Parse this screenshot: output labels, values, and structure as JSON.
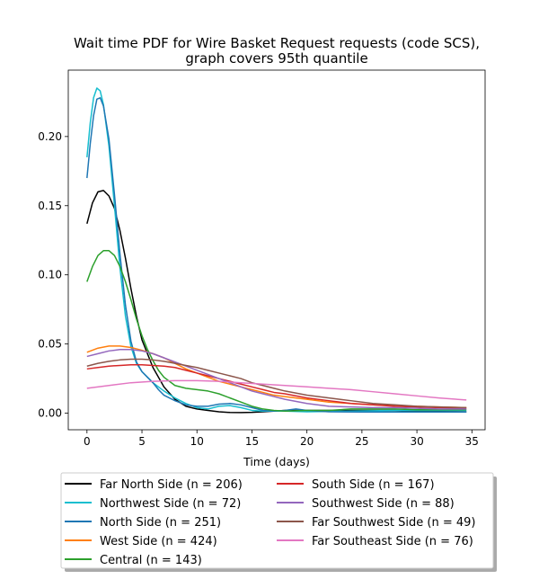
{
  "chart_data": {
    "type": "line",
    "title_line1": "Wait time PDF for Wire Basket Request  requests (code SCS),",
    "title_line2": "graph covers 95th quantile",
    "xlabel": "Time (days)",
    "ylabel": "",
    "xlim": [
      -1.7,
      36.2
    ],
    "ylim": [
      -0.012,
      0.248
    ],
    "x_ticks": [
      0,
      5,
      10,
      15,
      20,
      25,
      30,
      35
    ],
    "y_ticks": [
      0.0,
      0.05,
      0.1,
      0.15,
      0.2
    ],
    "x_tick_labels": [
      "0",
      "5",
      "10",
      "15",
      "20",
      "25",
      "30",
      "35"
    ],
    "y_tick_labels": [
      "0.00",
      "0.05",
      "0.10",
      "0.15",
      "0.20"
    ],
    "grid": false,
    "legend_position": "below",
    "series": [
      {
        "name": "Far North Side (n = 206)",
        "color": "#000000",
        "points": [
          [
            0,
            0.137
          ],
          [
            0.5,
            0.152
          ],
          [
            1,
            0.16
          ],
          [
            1.5,
            0.161
          ],
          [
            2,
            0.157
          ],
          [
            2.5,
            0.148
          ],
          [
            3,
            0.132
          ],
          [
            3.5,
            0.112
          ],
          [
            4,
            0.09
          ],
          [
            4.5,
            0.07
          ],
          [
            5,
            0.053
          ],
          [
            6,
            0.033
          ],
          [
            7,
            0.019
          ],
          [
            8,
            0.01
          ],
          [
            9,
            0.005
          ],
          [
            10,
            0.003
          ],
          [
            11,
            0.002
          ],
          [
            12,
            0.001
          ],
          [
            13,
            0.0005
          ],
          [
            14,
            0.0004
          ],
          [
            15,
            0.0006
          ],
          [
            16,
            0.001
          ],
          [
            18,
            0.002
          ],
          [
            20,
            0.002
          ],
          [
            22,
            0.002
          ],
          [
            24,
            0.002
          ],
          [
            26,
            0.002
          ],
          [
            28,
            0.002
          ],
          [
            30,
            0.0015
          ],
          [
            32,
            0.0012
          ],
          [
            34.5,
            0.001
          ]
        ]
      },
      {
        "name": "Northwest Side (n = 72)",
        "color": "#17becf",
        "points": [
          [
            0,
            0.185
          ],
          [
            0.3,
            0.21
          ],
          [
            0.6,
            0.228
          ],
          [
            0.9,
            0.235
          ],
          [
            1.2,
            0.233
          ],
          [
            1.5,
            0.223
          ],
          [
            2,
            0.193
          ],
          [
            2.5,
            0.15
          ],
          [
            3,
            0.105
          ],
          [
            3.5,
            0.07
          ],
          [
            4,
            0.048
          ],
          [
            4.5,
            0.036
          ],
          [
            5,
            0.03
          ],
          [
            5.5,
            0.026
          ],
          [
            6,
            0.022
          ],
          [
            7,
            0.016
          ],
          [
            8,
            0.011
          ],
          [
            9,
            0.007
          ],
          [
            10,
            0.004
          ],
          [
            11,
            0.003
          ],
          [
            12,
            0.005
          ],
          [
            13,
            0.0055
          ],
          [
            14,
            0.004
          ],
          [
            15,
            0.002
          ],
          [
            16,
            0.0015
          ],
          [
            18,
            0.0015
          ],
          [
            20,
            0.001
          ],
          [
            24,
            0.0015
          ],
          [
            28,
            0.002
          ],
          [
            31,
            0.002
          ],
          [
            34.5,
            0.002
          ]
        ]
      },
      {
        "name": "North Side (n = 251)",
        "color": "#1f77b4",
        "points": [
          [
            0,
            0.17
          ],
          [
            0.3,
            0.195
          ],
          [
            0.6,
            0.215
          ],
          [
            0.9,
            0.227
          ],
          [
            1.2,
            0.228
          ],
          [
            1.5,
            0.222
          ],
          [
            2,
            0.198
          ],
          [
            2.5,
            0.158
          ],
          [
            3,
            0.115
          ],
          [
            3.5,
            0.078
          ],
          [
            4,
            0.052
          ],
          [
            4.5,
            0.037
          ],
          [
            5,
            0.03
          ],
          [
            5.5,
            0.026
          ],
          [
            6,
            0.022
          ],
          [
            6.5,
            0.017
          ],
          [
            7,
            0.013
          ],
          [
            8,
            0.009
          ],
          [
            9,
            0.006
          ],
          [
            10,
            0.005
          ],
          [
            11,
            0.005
          ],
          [
            12,
            0.0065
          ],
          [
            13,
            0.007
          ],
          [
            14,
            0.006
          ],
          [
            15,
            0.004
          ],
          [
            16,
            0.002
          ],
          [
            17,
            0.0015
          ],
          [
            18,
            0.002
          ],
          [
            19,
            0.003
          ],
          [
            20,
            0.002
          ],
          [
            22,
            0.001
          ],
          [
            25,
            0.0008
          ],
          [
            28,
            0.0008
          ],
          [
            31,
            0.0008
          ],
          [
            34.5,
            0.0008
          ]
        ]
      },
      {
        "name": "West Side (n = 424)",
        "color": "#ff7f0e",
        "points": [
          [
            0,
            0.044
          ],
          [
            1,
            0.047
          ],
          [
            2,
            0.0485
          ],
          [
            3,
            0.0485
          ],
          [
            4,
            0.0475
          ],
          [
            5,
            0.0455
          ],
          [
            6,
            0.043
          ],
          [
            7,
            0.04
          ],
          [
            8,
            0.036
          ],
          [
            9,
            0.032
          ],
          [
            10,
            0.029
          ],
          [
            11,
            0.026
          ],
          [
            12,
            0.023
          ],
          [
            13,
            0.021
          ],
          [
            14,
            0.019
          ],
          [
            15,
            0.017
          ],
          [
            16,
            0.015
          ],
          [
            17,
            0.013
          ],
          [
            18,
            0.012
          ],
          [
            19,
            0.011
          ],
          [
            20,
            0.01
          ],
          [
            22,
            0.008
          ],
          [
            24,
            0.007
          ],
          [
            26,
            0.006
          ],
          [
            28,
            0.0055
          ],
          [
            30,
            0.005
          ],
          [
            32,
            0.0045
          ],
          [
            34.5,
            0.004
          ]
        ]
      },
      {
        "name": "Central (n = 143)",
        "color": "#2ca02c",
        "points": [
          [
            0,
            0.095
          ],
          [
            0.5,
            0.106
          ],
          [
            1,
            0.114
          ],
          [
            1.5,
            0.1175
          ],
          [
            2,
            0.1175
          ],
          [
            2.5,
            0.114
          ],
          [
            3,
            0.106
          ],
          [
            3.5,
            0.095
          ],
          [
            4,
            0.082
          ],
          [
            4.5,
            0.068
          ],
          [
            5,
            0.056
          ],
          [
            5.5,
            0.046
          ],
          [
            6,
            0.038
          ],
          [
            6.5,
            0.031
          ],
          [
            7,
            0.026
          ],
          [
            8,
            0.02
          ],
          [
            9,
            0.018
          ],
          [
            10,
            0.017
          ],
          [
            11,
            0.016
          ],
          [
            12,
            0.014
          ],
          [
            13,
            0.011
          ],
          [
            14,
            0.008
          ],
          [
            15,
            0.005
          ],
          [
            16,
            0.003
          ],
          [
            17,
            0.002
          ],
          [
            18,
            0.0015
          ],
          [
            20,
            0.002
          ],
          [
            22,
            0.002
          ],
          [
            24,
            0.003
          ],
          [
            26,
            0.003
          ],
          [
            28,
            0.003
          ],
          [
            30,
            0.0025
          ],
          [
            32,
            0.0025
          ],
          [
            34.5,
            0.0025
          ]
        ]
      },
      {
        "name": "South Side (n = 167)",
        "color": "#d62728",
        "points": [
          [
            0,
            0.032
          ],
          [
            1,
            0.033
          ],
          [
            2,
            0.034
          ],
          [
            3,
            0.0345
          ],
          [
            4,
            0.035
          ],
          [
            5,
            0.035
          ],
          [
            6,
            0.0345
          ],
          [
            7,
            0.034
          ],
          [
            8,
            0.033
          ],
          [
            9,
            0.031
          ],
          [
            10,
            0.029
          ],
          [
            11,
            0.027
          ],
          [
            12,
            0.025
          ],
          [
            13,
            0.023
          ],
          [
            14,
            0.021
          ],
          [
            15,
            0.019
          ],
          [
            16,
            0.017
          ],
          [
            17,
            0.015
          ],
          [
            18,
            0.014
          ],
          [
            20,
            0.011
          ],
          [
            22,
            0.009
          ],
          [
            24,
            0.007
          ],
          [
            26,
            0.006
          ],
          [
            28,
            0.005
          ],
          [
            30,
            0.0045
          ],
          [
            32,
            0.004
          ],
          [
            34.5,
            0.0035
          ]
        ]
      },
      {
        "name": "Southwest Side (n = 88)",
        "color": "#9467bd",
        "points": [
          [
            0,
            0.041
          ],
          [
            1,
            0.043
          ],
          [
            2,
            0.045
          ],
          [
            3,
            0.046
          ],
          [
            4,
            0.046
          ],
          [
            5,
            0.045
          ],
          [
            6,
            0.043
          ],
          [
            7,
            0.04
          ],
          [
            8,
            0.037
          ],
          [
            9,
            0.034
          ],
          [
            10,
            0.031
          ],
          [
            11,
            0.028
          ],
          [
            12,
            0.025
          ],
          [
            13,
            0.022
          ],
          [
            14,
            0.019
          ],
          [
            15,
            0.016
          ],
          [
            16,
            0.014
          ],
          [
            17,
            0.012
          ],
          [
            18,
            0.01
          ],
          [
            20,
            0.007
          ],
          [
            22,
            0.005
          ],
          [
            24,
            0.0045
          ],
          [
            26,
            0.004
          ],
          [
            28,
            0.004
          ],
          [
            30,
            0.0035
          ],
          [
            32,
            0.003
          ],
          [
            34.5,
            0.003
          ]
        ]
      },
      {
        "name": "Far Southwest Side (n = 49)",
        "color": "#8c564b",
        "points": [
          [
            0,
            0.034
          ],
          [
            1,
            0.036
          ],
          [
            2,
            0.0375
          ],
          [
            3,
            0.0385
          ],
          [
            4,
            0.039
          ],
          [
            5,
            0.039
          ],
          [
            6,
            0.0385
          ],
          [
            7,
            0.0375
          ],
          [
            8,
            0.036
          ],
          [
            9,
            0.0345
          ],
          [
            10,
            0.033
          ],
          [
            11,
            0.031
          ],
          [
            12,
            0.029
          ],
          [
            13,
            0.027
          ],
          [
            14,
            0.025
          ],
          [
            15,
            0.022
          ],
          [
            16,
            0.02
          ],
          [
            17,
            0.018
          ],
          [
            18,
            0.016
          ],
          [
            20,
            0.013
          ],
          [
            22,
            0.011
          ],
          [
            24,
            0.009
          ],
          [
            26,
            0.007
          ],
          [
            28,
            0.006
          ],
          [
            30,
            0.005
          ],
          [
            32,
            0.0045
          ],
          [
            34.5,
            0.004
          ]
        ]
      },
      {
        "name": "Far Southeast Side (n = 76)",
        "color": "#e377c2",
        "points": [
          [
            0,
            0.018
          ],
          [
            2,
            0.02
          ],
          [
            4,
            0.022
          ],
          [
            6,
            0.023
          ],
          [
            8,
            0.0235
          ],
          [
            10,
            0.0235
          ],
          [
            12,
            0.023
          ],
          [
            14,
            0.022
          ],
          [
            16,
            0.021
          ],
          [
            18,
            0.02
          ],
          [
            20,
            0.019
          ],
          [
            22,
            0.018
          ],
          [
            24,
            0.017
          ],
          [
            26,
            0.0155
          ],
          [
            28,
            0.014
          ],
          [
            30,
            0.0125
          ],
          [
            32,
            0.011
          ],
          [
            34.5,
            0.0095
          ]
        ]
      }
    ]
  }
}
